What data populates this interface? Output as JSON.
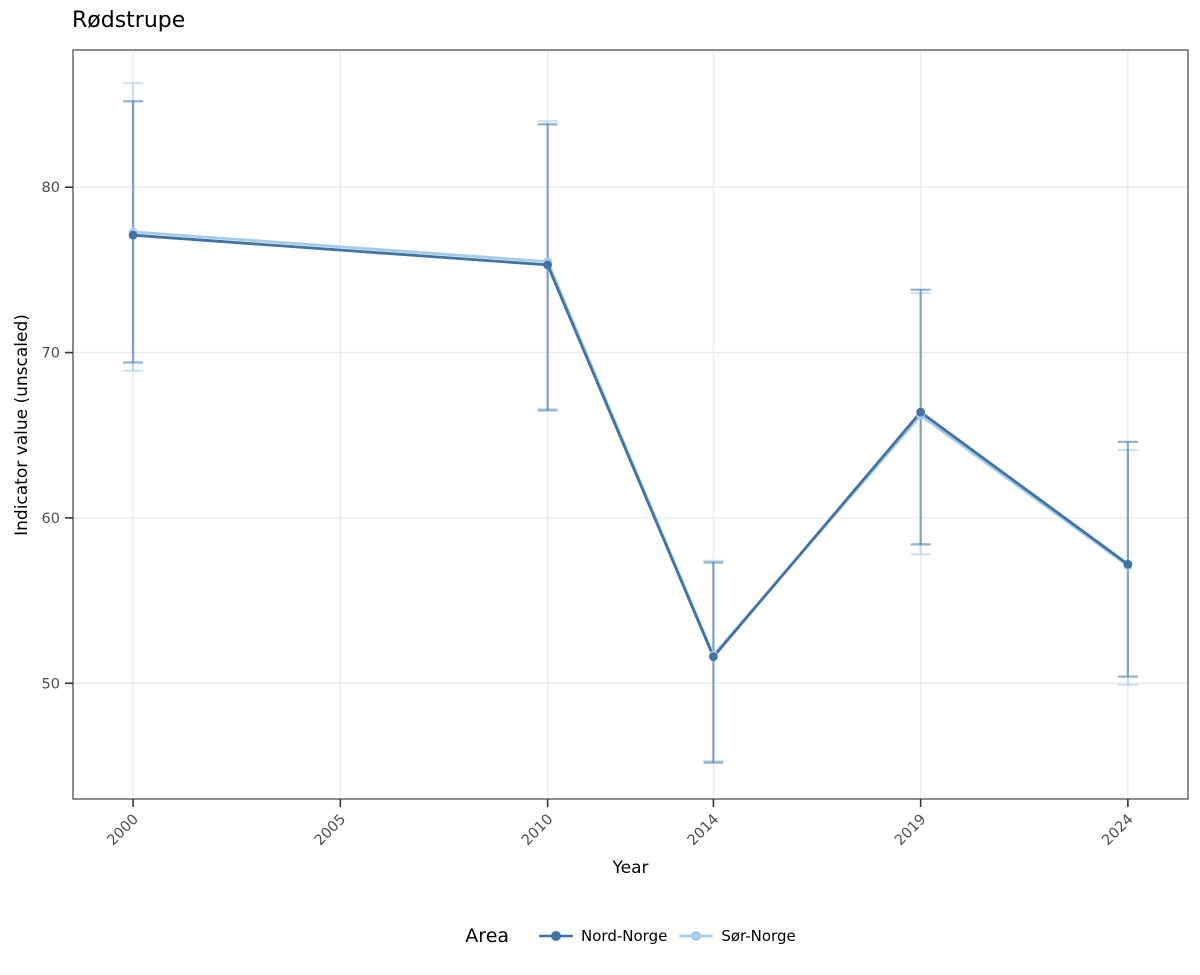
{
  "chart_data": {
    "type": "line",
    "title": "Rødstrupe",
    "xlabel": "Year",
    "ylabel": "Indicator value (unscaled)",
    "legend_title": "Area",
    "legend_position": "bottom",
    "grid": true,
    "x_ticks": [
      2000,
      2005,
      2010,
      2014,
      2019,
      2024
    ],
    "x_tick_labels": [
      "2000",
      "2005",
      "2010",
      "2014",
      "2019",
      "2024"
    ],
    "y_ticks": [
      50,
      60,
      70,
      80
    ],
    "y_tick_labels": [
      "50",
      "60",
      "70",
      "80"
    ],
    "x_domain": [
      1998.55,
      2025.45
    ],
    "y_domain": [
      43.0,
      88.3
    ],
    "colors": {
      "grid": "#ebebeb",
      "border": "#4d4d4d",
      "tick": "#333333",
      "tick_label": "#4d4d4d",
      "background": "#ffffff"
    },
    "series": [
      {
        "name": "Nord-Norge",
        "color": "#4173a3",
        "points": [
          {
            "year": 2000,
            "value": 77.1,
            "ci_low": 69.4,
            "ci_high": 85.2
          },
          {
            "year": 2010,
            "value": 75.3,
            "ci_low": 66.5,
            "ci_high": 83.8
          },
          {
            "year": 2014,
            "value": 51.6,
            "ci_low": 45.2,
            "ci_high": 57.3
          },
          {
            "year": 2019,
            "value": 66.4,
            "ci_low": 58.4,
            "ci_high": 73.8
          },
          {
            "year": 2024,
            "value": 57.2,
            "ci_low": 50.4,
            "ci_high": 64.6
          }
        ]
      },
      {
        "name": "Sør-Norge",
        "color": "#a6cbe8",
        "points": [
          {
            "year": 2000,
            "value": 77.3,
            "ci_low": 68.9,
            "ci_high": 86.3
          },
          {
            "year": 2010,
            "value": 75.5,
            "ci_low": 66.6,
            "ci_high": 84.0
          },
          {
            "year": 2014,
            "value": 51.7,
            "ci_low": 45.3,
            "ci_high": 57.4
          },
          {
            "year": 2019,
            "value": 66.2,
            "ci_low": 57.8,
            "ci_high": 73.6
          },
          {
            "year": 2024,
            "value": 57.1,
            "ci_low": 49.9,
            "ci_high": 64.1
          }
        ]
      }
    ]
  }
}
